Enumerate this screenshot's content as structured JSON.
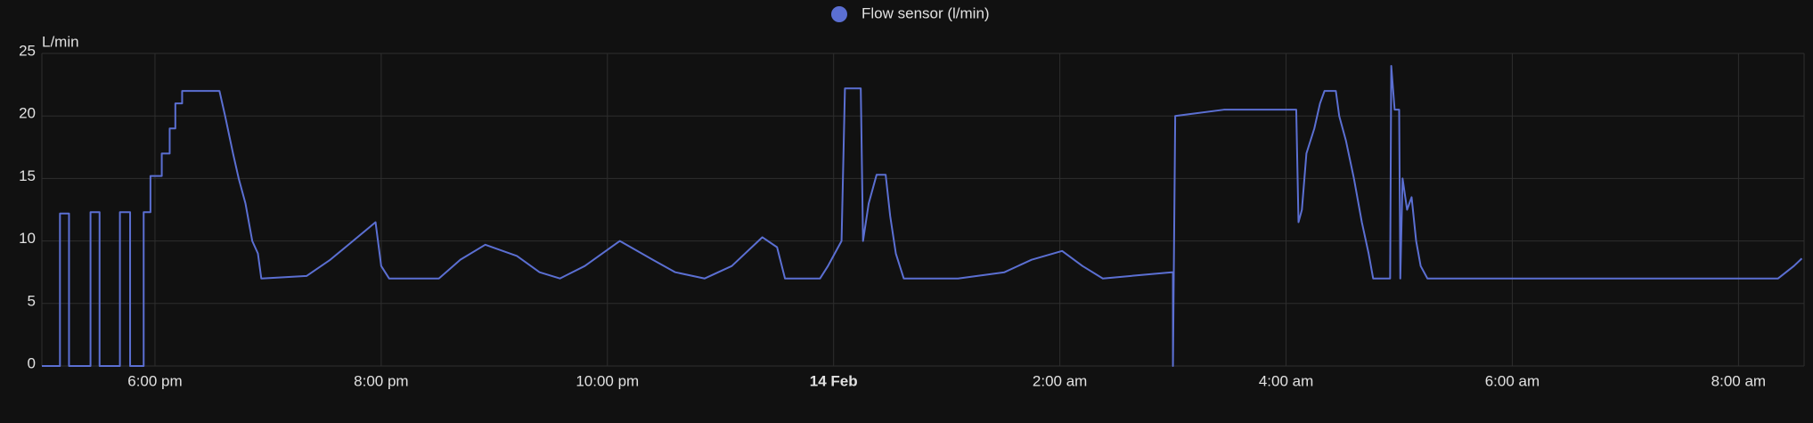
{
  "chart_data": {
    "type": "line",
    "ylabel": "L/min",
    "xlim": [
      17,
      32.58
    ],
    "xticks": [
      {
        "value": 18,
        "label": "6:00 pm"
      },
      {
        "value": 20,
        "label": "8:00 pm"
      },
      {
        "value": 22,
        "label": "10:00 pm"
      },
      {
        "value": 24,
        "label": "14 Feb"
      },
      {
        "value": 26,
        "label": "2:00 am"
      },
      {
        "value": 28,
        "label": "4:00 am"
      },
      {
        "value": 30,
        "label": "6:00 am"
      },
      {
        "value": 32,
        "label": "8:00 am"
      }
    ],
    "ylim": [
      0,
      25
    ],
    "yticks": [
      0,
      5,
      10,
      15,
      20,
      25
    ],
    "grid": true,
    "legend": "top",
    "x": [
      17.0,
      17.16,
      17.16,
      17.24,
      17.24,
      17.43,
      17.43,
      17.51,
      17.51,
      17.69,
      17.69,
      17.78,
      17.78,
      17.9,
      17.9,
      17.96,
      17.96,
      18.06,
      18.06,
      18.13,
      18.13,
      18.18,
      18.18,
      18.24,
      18.24,
      18.57,
      18.62,
      18.69,
      18.74,
      18.8,
      18.86,
      18.91,
      18.94,
      19.34,
      19.55,
      19.75,
      19.95,
      20.0,
      20.07,
      20.51,
      20.7,
      20.92,
      21.2,
      21.4,
      21.58,
      21.8,
      22.11,
      22.4,
      22.6,
      22.86,
      23.1,
      23.37,
      23.5,
      23.57,
      23.88,
      23.95,
      24.01,
      24.07,
      24.1,
      24.24,
      24.26,
      24.31,
      24.38,
      24.46,
      24.5,
      24.55,
      24.62,
      25.1,
      25.51,
      25.75,
      26.02,
      26.2,
      26.38,
      26.99,
      27.0,
      27.0,
      27.02,
      27.45,
      28.09,
      28.11,
      28.14,
      28.18,
      28.25,
      28.3,
      28.34,
      28.44,
      28.47,
      28.53,
      28.6,
      28.67,
      28.73,
      28.77,
      28.92,
      28.93,
      28.96,
      29.0,
      29.01,
      29.03,
      29.07,
      29.11,
      29.15,
      29.19,
      29.25,
      32.35,
      32.49,
      32.56
    ],
    "series": [
      {
        "name": "Flow sensor (l/min)",
        "color": "#5b6fd2",
        "values": [
          0,
          0,
          12.2,
          12.2,
          0,
          0,
          12.3,
          12.3,
          0,
          0,
          12.3,
          12.3,
          0,
          0,
          12.3,
          12.3,
          15.2,
          15.2,
          17,
          17,
          19,
          19,
          21,
          21,
          22,
          22,
          20,
          17,
          15,
          13,
          10,
          9,
          7,
          7.2,
          8.5,
          10,
          11.5,
          8,
          7,
          7,
          8.5,
          9.7,
          8.8,
          7.5,
          7,
          8,
          10,
          8.5,
          7.5,
          7,
          8,
          10.3,
          9.5,
          7,
          7,
          8,
          9,
          10,
          22.2,
          22.2,
          10,
          13,
          15.3,
          15.3,
          12,
          9,
          7,
          7,
          7.5,
          8.5,
          9.2,
          8,
          7,
          7.5,
          7.5,
          0,
          20,
          20.5,
          20.5,
          11.5,
          12.5,
          17,
          19,
          21,
          22,
          22,
          20,
          18,
          15,
          11.5,
          9,
          7,
          7,
          24,
          20.5,
          20.5,
          7,
          15,
          12.5,
          13.5,
          10,
          8,
          7,
          7,
          8,
          8.6
        ]
      }
    ]
  }
}
